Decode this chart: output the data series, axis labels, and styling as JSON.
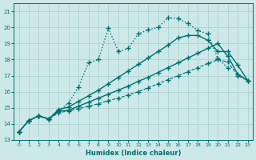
{
  "title": "",
  "xlabel": "Humidex (Indice chaleur)",
  "background_color": "#cce8e8",
  "grid_color": "#aacece",
  "line_color": "#007070",
  "xlim": [
    -0.5,
    23.5
  ],
  "ylim": [
    13,
    21.5
  ],
  "yticks": [
    13,
    14,
    15,
    16,
    17,
    18,
    19,
    20,
    21
  ],
  "xticks": [
    0,
    1,
    2,
    3,
    4,
    5,
    6,
    7,
    8,
    9,
    10,
    11,
    12,
    13,
    14,
    15,
    16,
    17,
    18,
    19,
    20,
    21,
    22,
    23
  ],
  "curves": [
    {
      "x": [
        0,
        1,
        2,
        3,
        4,
        5,
        6,
        7,
        8,
        9,
        10,
        11,
        12,
        13,
        14,
        15,
        16,
        17,
        18,
        19,
        20,
        21
      ],
      "y": [
        13.5,
        14.2,
        14.5,
        14.3,
        14.8,
        15.3,
        16.3,
        17.8,
        18.0,
        19.95,
        18.5,
        18.7,
        19.6,
        19.85,
        20.0,
        20.6,
        20.55,
        20.25,
        19.8,
        19.6,
        18.05,
        17.5
      ],
      "style": "dotted",
      "marker": "+",
      "markersize": 4,
      "lw": 1.0
    },
    {
      "x": [
        0,
        1,
        2,
        3,
        4,
        5,
        6,
        7,
        8,
        9,
        10,
        11,
        12,
        13,
        14,
        15,
        16,
        17,
        18,
        19,
        20,
        21,
        22,
        23
      ],
      "y": [
        13.5,
        14.2,
        14.5,
        14.3,
        14.9,
        15.05,
        15.4,
        15.75,
        16.1,
        16.5,
        16.9,
        17.3,
        17.7,
        18.1,
        18.5,
        18.9,
        19.35,
        19.5,
        19.5,
        19.2,
        18.5,
        18.5,
        17.65,
        16.7
      ],
      "style": "solid",
      "marker": "+",
      "markersize": 4,
      "lw": 1.0
    },
    {
      "x": [
        0,
        1,
        2,
        3,
        4,
        5,
        6,
        7,
        8,
        9,
        10,
        11,
        12,
        13,
        14,
        15,
        16,
        17,
        18,
        19,
        20,
        21,
        22,
        23
      ],
      "y": [
        13.5,
        14.2,
        14.5,
        14.3,
        14.8,
        14.85,
        15.1,
        15.35,
        15.6,
        15.85,
        16.1,
        16.35,
        16.65,
        16.9,
        17.2,
        17.5,
        17.8,
        18.1,
        18.4,
        18.7,
        19.0,
        18.2,
        17.1,
        16.7
      ],
      "style": "solid",
      "marker": "+",
      "markersize": 4,
      "lw": 1.0
    },
    {
      "x": [
        0,
        1,
        2,
        3,
        4,
        5,
        6,
        7,
        8,
        9,
        10,
        11,
        12,
        13,
        14,
        15,
        16,
        17,
        18,
        19,
        20,
        21,
        22,
        23
      ],
      "y": [
        13.5,
        14.2,
        14.5,
        14.3,
        14.7,
        14.8,
        14.95,
        15.1,
        15.25,
        15.45,
        15.6,
        15.8,
        16.0,
        16.25,
        16.5,
        16.75,
        17.0,
        17.25,
        17.5,
        17.75,
        18.0,
        17.85,
        17.0,
        16.7
      ],
      "style": "dashed",
      "marker": "+",
      "markersize": 4,
      "lw": 0.8
    }
  ]
}
